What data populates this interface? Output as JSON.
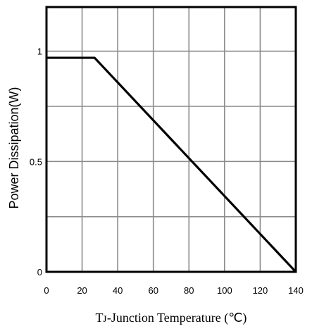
{
  "chart_data": {
    "type": "line",
    "xlabel": "Tᴊ-Junction Temperature (℃)",
    "ylabel": "Power Dissipation(W)",
    "xlim": [
      0,
      140
    ],
    "ylim": [
      0,
      1.2
    ],
    "x_ticks": [
      "0",
      "20",
      "40",
      "60",
      "80",
      "100",
      "120",
      "140"
    ],
    "y_ticks": [
      "0",
      "0.5",
      "1"
    ],
    "grid": true,
    "series": [
      {
        "x": [
          0,
          27,
          140
        ],
        "y": [
          0.97,
          0.97,
          0
        ]
      }
    ],
    "colors": {
      "line": "#000000",
      "grid": "#8a8a8a",
      "frame": "#000000"
    }
  }
}
